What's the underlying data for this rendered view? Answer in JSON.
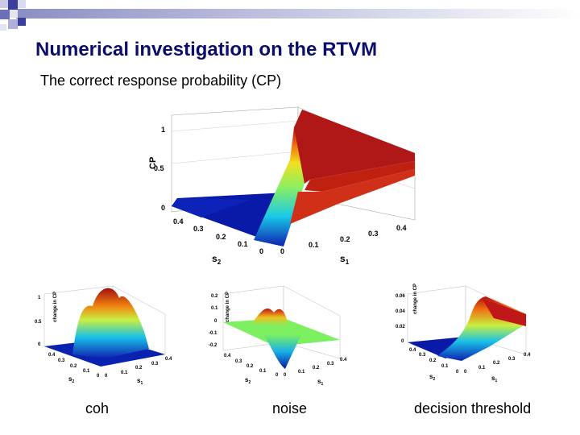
{
  "slide": {
    "title": "Numerical investigation on the RTVM",
    "subtitle": "The correct response probability (CP)"
  },
  "main_plot": {
    "z_label": "CP",
    "z_ticks": [
      "1",
      "0.5",
      "0"
    ],
    "s2_ticks": [
      "0.4",
      "0.3",
      "0.2",
      "0.1",
      "0"
    ],
    "s1_ticks": [
      "0",
      "0.1",
      "0.2",
      "0.3",
      "0.4"
    ],
    "s2_label": "s",
    "s2_sub": "2",
    "s1_label": "s",
    "s1_sub": "1"
  },
  "small_plots": [
    {
      "z_label": "change in CP",
      "z_ticks": [
        "1",
        "0.5",
        "0"
      ],
      "s2_ticks": [
        "0.4",
        "0.3",
        "0.2",
        "0.1",
        "0"
      ],
      "s1_ticks": [
        "0",
        "0.1",
        "0.2",
        "0.3",
        "0.4"
      ],
      "caption": "coh"
    },
    {
      "z_label": "change in CP",
      "z_ticks": [
        "0.2",
        "0.1",
        "0",
        "-0.1",
        "-0.2"
      ],
      "s2_ticks": [
        "0.4",
        "0.3",
        "0.2",
        "0.1",
        "0"
      ],
      "s1_ticks": [
        "0",
        "0.1",
        "0.2",
        "0.3",
        "0.4"
      ],
      "caption": "noise"
    },
    {
      "z_label": "change in CP",
      "z_ticks": [
        "0.06",
        "0.04",
        "0.02",
        "0"
      ],
      "s2_ticks": [
        "0.4",
        "0.3",
        "0.2",
        "0.1",
        "0"
      ],
      "s1_ticks": [
        "0",
        "0.1",
        "0.2",
        "0.3",
        "0.4"
      ],
      "caption": "decision threshold"
    }
  ],
  "axis_symbols": {
    "s": "s",
    "sub1": "1",
    "sub2": "2"
  },
  "colors": {
    "title": "#0b0f6b",
    "surface_low": "#0a1a9e",
    "surface_high": "#b01010",
    "surface_mid": "#6cf07a"
  }
}
